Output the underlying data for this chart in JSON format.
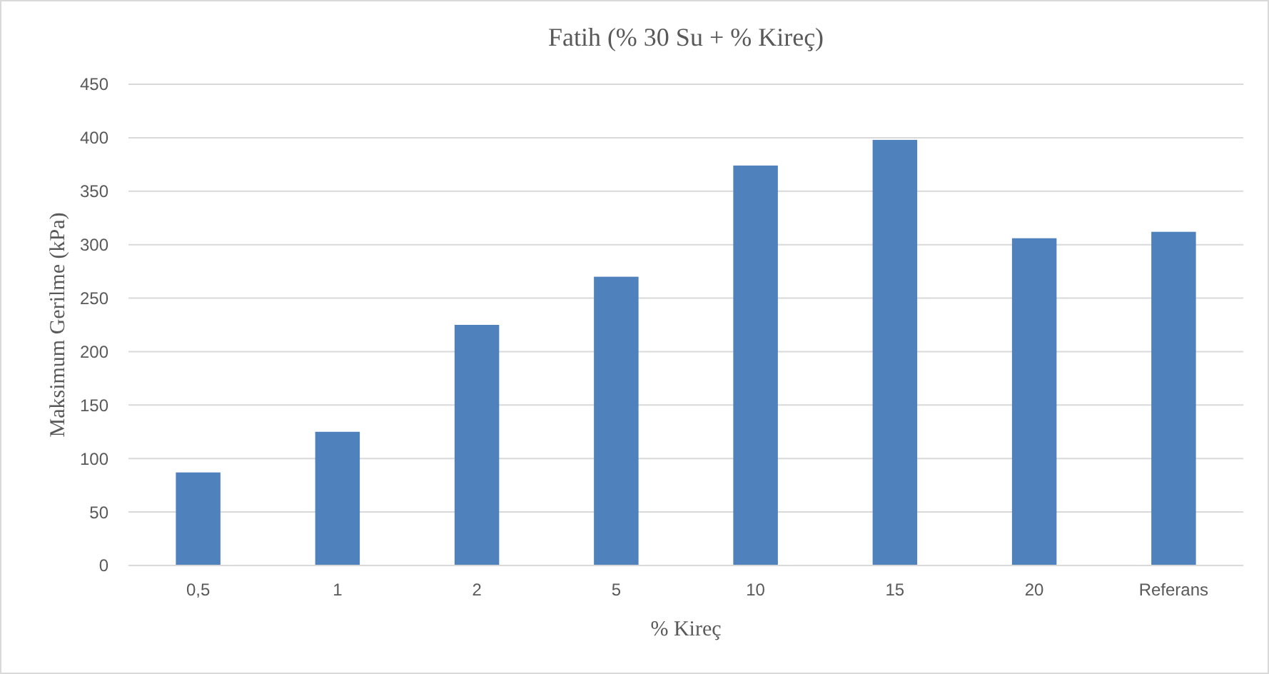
{
  "chart_data": {
    "type": "bar",
    "title": "Fatih (% 30 Su + % Kireç)",
    "xlabel": "% Kireç",
    "ylabel": "Maksimum Gerilme (kPa)",
    "categories": [
      "0,5",
      "1",
      "2",
      "5",
      "10",
      "15",
      "20",
      "Referans"
    ],
    "values": [
      87,
      125,
      225,
      270,
      374,
      398,
      306,
      312
    ],
    "color": "#4f81bd",
    "ylim": [
      0,
      450
    ],
    "yticks": [
      0,
      50,
      100,
      150,
      200,
      250,
      300,
      350,
      400,
      450
    ],
    "grid": "y"
  }
}
